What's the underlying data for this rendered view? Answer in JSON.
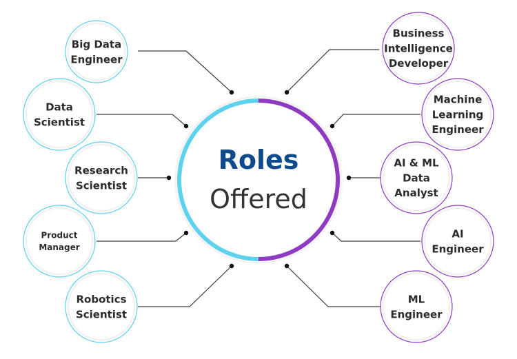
{
  "center": {
    "title": "Roles",
    "subtitle": "Offered"
  },
  "colors": {
    "left_accent": "#5ed1ee",
    "right_accent": "#8e3bc2",
    "title": "#0e4a8c",
    "connector": "#3a3a3a"
  },
  "left_roles": [
    [
      "Big Data",
      "Engineer"
    ],
    [
      "Data",
      "Scientist"
    ],
    [
      "Research",
      "Scientist"
    ],
    [
      "Product",
      "Manager"
    ],
    [
      "Robotics",
      "Scientist"
    ]
  ],
  "right_roles": [
    [
      "Business",
      "Intelligence",
      "Developer"
    ],
    [
      "Machine",
      "Learning",
      "Engineer"
    ],
    [
      "AI & ML",
      "Data",
      "Analyst"
    ],
    [
      "AI",
      "Engineer"
    ],
    [
      "ML",
      "Engineer"
    ]
  ]
}
